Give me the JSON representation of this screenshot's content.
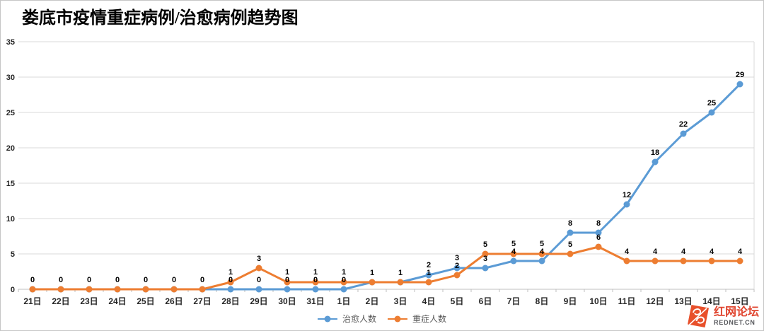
{
  "title": "娄底市疫情重症病例/治愈病例趋势图",
  "watermark": {
    "site_name": "红网论坛",
    "site_domain": "REDNET.CN",
    "logo_icon": "rednet-logo",
    "accent_color": "#E8502B"
  },
  "colors": {
    "gridline": "#D9D9D9",
    "axis_line": "#BFBFBF",
    "tick_label": "#262626",
    "data_label": "#000000",
    "legend_text": "#595959",
    "background": "#FFFFFF",
    "cured_blue": "#5B9BD5",
    "severe_orange": "#ED7D31"
  },
  "chart_data": {
    "type": "line",
    "title": "娄底市疫情重症病例/治愈病例趋势图",
    "categories": [
      "21日",
      "22日",
      "23日",
      "24日",
      "25日",
      "26日",
      "27日",
      "28日",
      "29日",
      "30日",
      "31日",
      "1日",
      "2日",
      "3日",
      "4日",
      "5日",
      "6日",
      "7日",
      "8日",
      "9日",
      "10日",
      "11日",
      "12日",
      "13日",
      "14日",
      "15日"
    ],
    "series": [
      {
        "name": "治愈人数",
        "color": "#5B9BD5",
        "marker": "circle",
        "values": [
          0,
          0,
          0,
          0,
          0,
          0,
          0,
          0,
          0,
          0,
          0,
          0,
          1,
          1,
          2,
          3,
          3,
          4,
          4,
          8,
          8,
          12,
          18,
          22,
          25,
          29
        ]
      },
      {
        "name": "重症人数",
        "color": "#ED7D31",
        "marker": "circle",
        "values": [
          0,
          0,
          0,
          0,
          0,
          0,
          0,
          1,
          3,
          1,
          1,
          1,
          1,
          1,
          1,
          2,
          5,
          5,
          5,
          5,
          6,
          4,
          4,
          4,
          4,
          4
        ]
      }
    ],
    "xlabel": "",
    "ylabel": "",
    "ylim": [
      0,
      35
    ],
    "yticks": [
      0,
      5,
      10,
      15,
      20,
      25,
      30,
      35
    ],
    "grid": true,
    "data_labels": true,
    "legend_position": "bottom"
  }
}
